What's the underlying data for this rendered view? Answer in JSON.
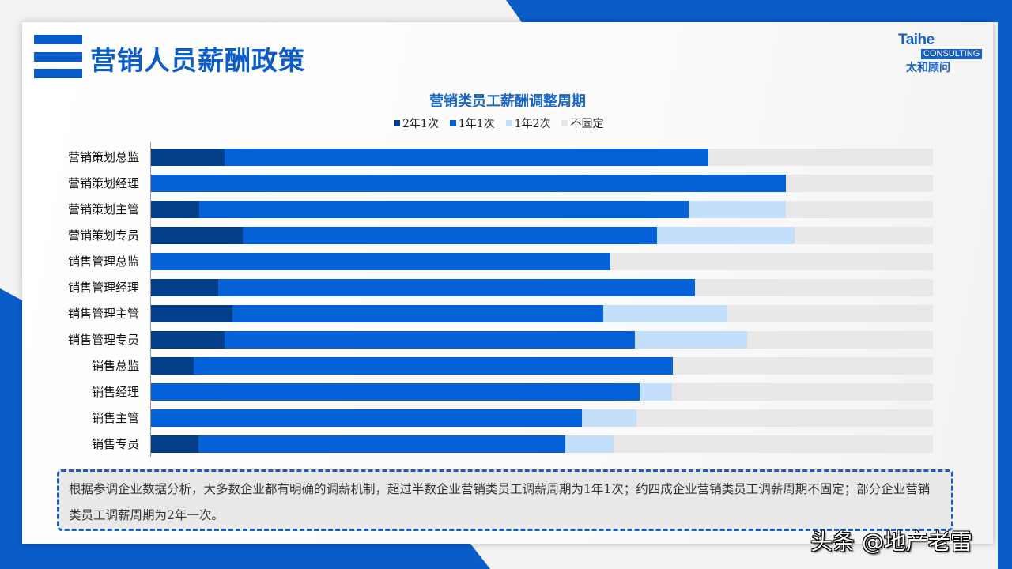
{
  "header": {
    "title": "营销人员薪酬政策",
    "logo": {
      "en": "Taihe",
      "tag": "CONSULTING",
      "cn": "太和顾问"
    }
  },
  "colors": {
    "brand": "#0a5cc8",
    "series_2y1": "#023e8a",
    "series_1y1": "#0561d8",
    "series_1y2": "#c4dff9",
    "series_none": "#e9e7e8"
  },
  "chart_data": {
    "type": "bar",
    "orientation": "horizontal",
    "stacked": true,
    "percent_stacked": true,
    "title": "营销类员工薪酬调整周期",
    "xlabel": "",
    "ylabel": "",
    "xlim": [
      0,
      100
    ],
    "grid": false,
    "legend_position": "top",
    "categories": [
      "营销策划总监",
      "营销策划经理",
      "营销策划主管",
      "营销策划专员",
      "销售管理总监",
      "销售管理经理",
      "销售管理主管",
      "销售管理专员",
      "销售总监",
      "销售经理",
      "销售主管",
      "销售专员"
    ],
    "series": [
      {
        "name": "2年1次",
        "color": "#023e8a",
        "values": [
          9.4,
          0,
          6.2,
          11.7,
          0,
          8.6,
          10.4,
          9.4,
          5.5,
          0,
          0,
          6.1
        ]
      },
      {
        "name": "1年1次",
        "color": "#0561d8",
        "values": [
          61.9,
          81.2,
          62.6,
          53.0,
          58.7,
          61.0,
          47.4,
          52.5,
          61.2,
          62.5,
          55.1,
          46.9
        ]
      },
      {
        "name": "1年2次",
        "color": "#c4dff9",
        "values": [
          0,
          0,
          12.4,
          17.6,
          0,
          0,
          15.9,
          14.3,
          0,
          4.1,
          7.0,
          6.2
        ]
      },
      {
        "name": "不固定",
        "color": "#e9e7e8",
        "values": [
          28.7,
          18.8,
          18.8,
          17.7,
          41.3,
          30.4,
          26.3,
          23.8,
          33.3,
          33.4,
          37.9,
          40.8
        ]
      }
    ]
  },
  "note": {
    "text": "根据参调企业数据分析，大多数企业都有明确的调薪机制，超过半数企业营销类员工调薪周期为1年1次；约四成企业营销类员工调薪周期不固定；部分企业营销类员工调薪周期为2年一次。"
  },
  "watermark": "头条 @地产老雷"
}
